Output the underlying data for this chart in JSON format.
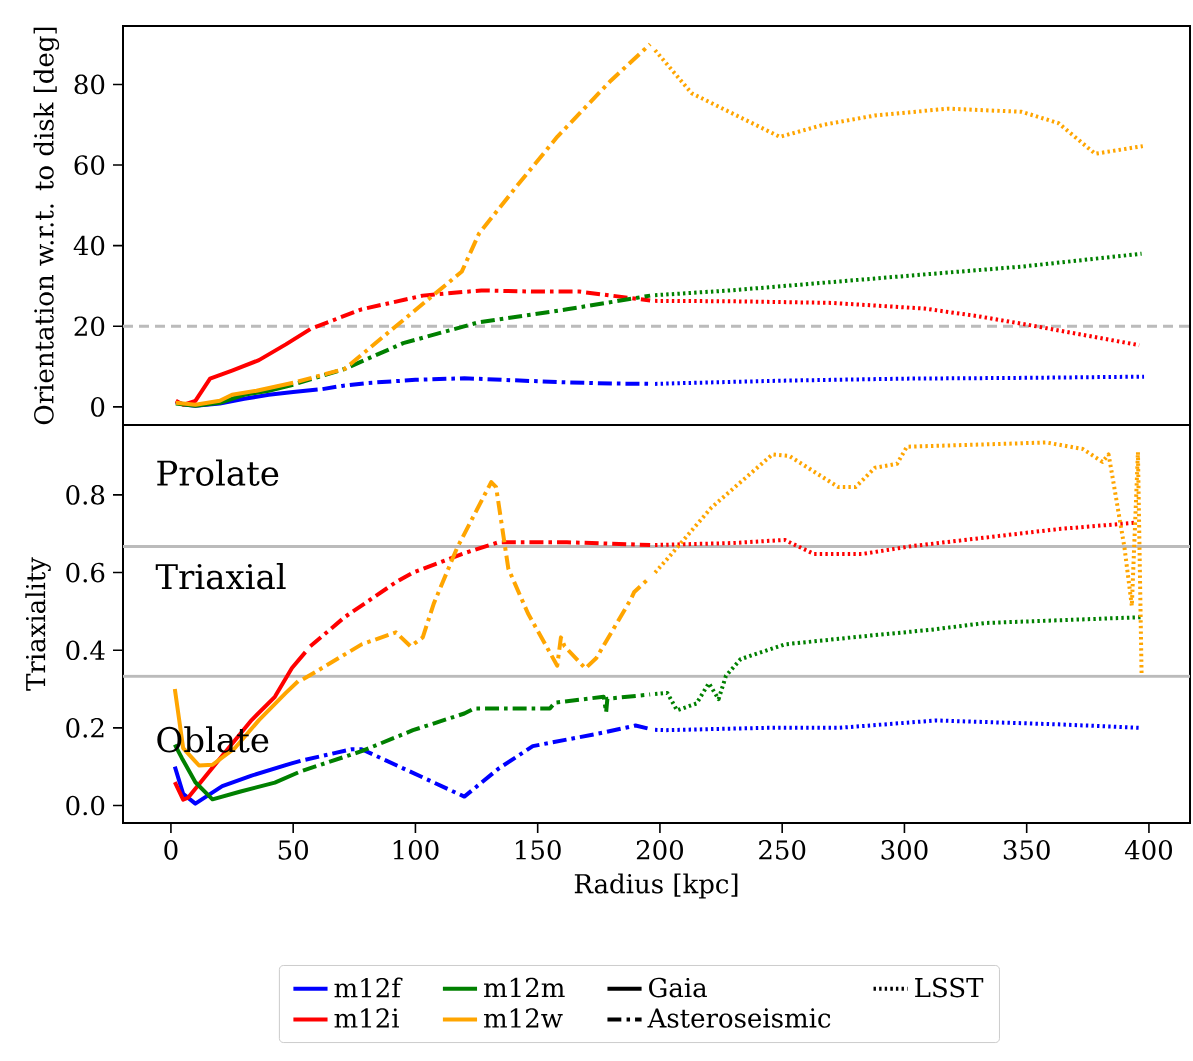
{
  "chart_data": [
    {
      "type": "line",
      "ylabel": "Orientation w.r.t. to disk [deg]",
      "xlim": [
        -19.6,
        416.8
      ],
      "ylim": [
        -4.5,
        94.5
      ],
      "yticks": [
        0,
        20,
        40,
        60,
        80
      ],
      "tick_labels": "y",
      "ref_lines": [
        {
          "axis": "y",
          "value": 20,
          "color": "#bbbbbb",
          "line_style": "dashed"
        }
      ],
      "series": [
        {
          "color": "#0000ff",
          "line_style": "solid",
          "x": [
            2,
            6,
            10,
            20,
            30,
            40,
            50,
            60
          ],
          "values": [
            1.2,
            0.5,
            0.3,
            0.8,
            2,
            3,
            3.7,
            4.3
          ]
        },
        {
          "color": "#0000ff",
          "line_style": "dashdot",
          "x": [
            62,
            70,
            80,
            100,
            120,
            140,
            160,
            180,
            196
          ],
          "values": [
            4.4,
            5.2,
            5.9,
            6.7,
            7.1,
            6.6,
            6.1,
            5.8,
            5.7
          ]
        },
        {
          "color": "#0000ff",
          "line_style": "dotted",
          "x": [
            198,
            210,
            250,
            300,
            350,
            398
          ],
          "values": [
            5.7,
            5.9,
            6.5,
            7.0,
            7.2,
            7.5
          ]
        },
        {
          "color": "#ff0000",
          "line_style": "solid",
          "x": [
            2,
            5,
            10,
            16,
            25,
            36,
            47,
            57
          ],
          "values": [
            1.5,
            0.5,
            1.5,
            7,
            9,
            11.6,
            15.5,
            19.3
          ]
        },
        {
          "color": "#ff0000",
          "line_style": "dashdot",
          "x": [
            59,
            78,
            103,
            127,
            148,
            167,
            196
          ],
          "values": [
            19.8,
            24.2,
            27.6,
            28.9,
            28.6,
            28.6,
            26.4
          ]
        },
        {
          "color": "#ff0000",
          "line_style": "dotted",
          "x": [
            198,
            229,
            270,
            308,
            330,
            352,
            396
          ],
          "values": [
            26.3,
            26.2,
            25.8,
            24.4,
            22.5,
            20.2,
            15.3
          ]
        },
        {
          "color": "#008000",
          "line_style": "solid",
          "x": [
            2,
            10,
            20,
            30,
            40,
            50
          ],
          "values": [
            0.8,
            0.3,
            1,
            3,
            4,
            5.5
          ]
        },
        {
          "color": "#008000",
          "line_style": "dashdot",
          "x": [
            52,
            71,
            95,
            126,
            162,
            196
          ],
          "values": [
            5.9,
            9.4,
            15.8,
            21,
            24.2,
            27.6
          ]
        },
        {
          "color": "#008000",
          "line_style": "dotted",
          "x": [
            198,
            229,
            303,
            348,
            397
          ],
          "values": [
            27.7,
            28.9,
            32.6,
            34.8,
            38
          ]
        },
        {
          "color": "#ffa500",
          "line_style": "solid",
          "x": [
            2,
            10,
            20,
            25,
            35,
            50
          ],
          "values": [
            1,
            0.5,
            1.5,
            3,
            4,
            6
          ]
        },
        {
          "color": "#ffa500",
          "line_style": "dashdot",
          "x": [
            52,
            71,
            92,
            119,
            126,
            141.5,
            158,
            180,
            196
          ],
          "values": [
            6.3,
            9.4,
            20,
            33.6,
            43,
            54.8,
            67,
            81,
            90
          ]
        },
        {
          "color": "#ffa500",
          "line_style": "dotted",
          "x": [
            198,
            213,
            229,
            249,
            267,
            288,
            318,
            348,
            363,
            378,
            397.5
          ],
          "values": [
            88.5,
            77.8,
            73,
            67,
            70,
            72.3,
            74,
            73.2,
            70.4,
            62.8,
            64.7
          ]
        }
      ]
    },
    {
      "type": "line",
      "xlabel": "Radius [kpc]",
      "ylabel": "Triaxiality",
      "xlim": [
        -19.6,
        416.8
      ],
      "ylim": [
        -0.045,
        0.98
      ],
      "xticks": [
        0,
        50,
        100,
        150,
        200,
        250,
        300,
        350,
        400
      ],
      "yticks": [
        {
          "value": 0,
          "label": "0.0"
        },
        {
          "value": 0.2,
          "label": "0.2"
        },
        {
          "value": 0.4,
          "label": "0.4"
        },
        {
          "value": 0.6,
          "label": "0.6"
        },
        {
          "value": 0.8,
          "label": "0.8"
        }
      ],
      "ref_lines": [
        {
          "axis": "y",
          "value": 0.333,
          "color": "#bbbbbb",
          "line_style": "solid"
        },
        {
          "axis": "y",
          "value": 0.667,
          "color": "#bbbbbb",
          "line_style": "solid"
        }
      ],
      "annotations": [
        "Prolate",
        "Triaxial",
        "Oblate"
      ],
      "legend": "bottom",
      "series": [
        {
          "name": "m12f",
          "color": "#0000ff",
          "line_style": "solid",
          "x": [
            1.6,
            5,
            10,
            21,
            33,
            49,
            53
          ],
          "values": [
            0.1,
            0.03,
            0.005,
            0.05,
            0.077,
            0.108,
            0.115
          ]
        },
        {
          "name": "m12i",
          "color": "#ff0000",
          "line_style": "solid",
          "x": [
            1.6,
            5,
            7,
            19,
            33,
            42.5,
            49.5,
            55
          ],
          "values": [
            0.06,
            0.015,
            0.02,
            0.113,
            0.22,
            0.28,
            0.354,
            0.395
          ]
        },
        {
          "name": "m12m",
          "color": "#008000",
          "line_style": "solid",
          "x": [
            1.6,
            4.5,
            10,
            17,
            28.5,
            42.5,
            52
          ],
          "values": [
            0.157,
            0.122,
            0.06,
            0.016,
            0.036,
            0.059,
            0.085
          ]
        },
        {
          "name": "m12w",
          "color": "#ffa500",
          "line_style": "solid",
          "x": [
            1.6,
            5,
            11.5,
            17,
            26,
            36,
            47,
            52
          ],
          "values": [
            0.3,
            0.148,
            0.103,
            0.105,
            0.147,
            0.22,
            0.29,
            0.32
          ]
        },
        {
          "name": "Gaia",
          "color": "#000000",
          "line_style": "solid"
        },
        {
          "name": "Asteroseismic",
          "color": "#000000",
          "line_style": "dashdot"
        },
        {
          "name": "LSST",
          "color": "#000000",
          "line_style": "dotted"
        },
        {
          "color": "#0000ff",
          "line_style": "dashdot",
          "x": [
            55,
            74,
            78,
            120,
            134,
            148,
            177,
            190,
            196
          ],
          "values": [
            0.118,
            0.145,
            0.145,
            0.023,
            0.095,
            0.153,
            0.188,
            0.206,
            0.197
          ]
        },
        {
          "color": "#0000ff",
          "line_style": "dotted",
          "x": [
            198,
            202,
            243,
            273,
            313,
            363,
            397
          ],
          "values": [
            0.195,
            0.194,
            0.2,
            0.2,
            0.219,
            0.209,
            0.2
          ]
        },
        {
          "color": "#ff0000",
          "line_style": "dashdot",
          "x": [
            57,
            71,
            92,
            99,
            120,
            134,
            162,
            196
          ],
          "values": [
            0.41,
            0.485,
            0.575,
            0.6,
            0.65,
            0.678,
            0.678,
            0.671
          ]
        },
        {
          "color": "#ff0000",
          "line_style": "dotted",
          "x": [
            198,
            230,
            251,
            263,
            283,
            303,
            333,
            363,
            394
          ],
          "values": [
            0.671,
            0.676,
            0.684,
            0.648,
            0.648,
            0.668,
            0.69,
            0.712,
            0.728
          ]
        },
        {
          "color": "#008000",
          "line_style": "dashdot",
          "x": [
            54,
            78,
            99,
            120,
            124,
            155,
            157,
            177,
            178,
            178.5,
            196
          ],
          "values": [
            0.09,
            0.14,
            0.194,
            0.237,
            0.25,
            0.25,
            0.265,
            0.28,
            0.24,
            0.275,
            0.286
          ]
        },
        {
          "color": "#008000",
          "line_style": "dotted",
          "x": [
            198,
            203,
            207,
            215,
            220,
            224,
            227,
            233,
            251,
            288,
            310,
            333,
            363,
            397
          ],
          "values": [
            0.287,
            0.29,
            0.245,
            0.263,
            0.315,
            0.274,
            0.334,
            0.377,
            0.415,
            0.439,
            0.452,
            0.47,
            0.477,
            0.485
          ]
        },
        {
          "color": "#ffa500",
          "line_style": "dashdot",
          "x": [
            54,
            57,
            78,
            92,
            98,
            103,
            107.5,
            117,
            131,
            133,
            138,
            146,
            158,
            159.5,
            161,
            169.5,
            174,
            188,
            189.5,
            196
          ],
          "values": [
            0.325,
            0.336,
            0.415,
            0.446,
            0.41,
            0.433,
            0.52,
            0.663,
            0.833,
            0.82,
            0.61,
            0.495,
            0.36,
            0.433,
            0.41,
            0.353,
            0.38,
            0.53,
            0.55,
            0.588
          ]
        },
        {
          "color": "#ffa500",
          "line_style": "dotted",
          "x": [
            198,
            203,
            221,
            246,
            253,
            273,
            280,
            288,
            297,
            301,
            333,
            358,
            373,
            381,
            383.5,
            385,
            390,
            393,
            395.5,
            397
          ],
          "values": [
            0.6,
            0.635,
            0.767,
            0.904,
            0.9,
            0.82,
            0.82,
            0.87,
            0.88,
            0.924,
            0.93,
            0.935,
            0.918,
            0.885,
            0.904,
            0.85,
            0.664,
            0.514,
            0.91,
            0.334
          ]
        }
      ]
    }
  ]
}
